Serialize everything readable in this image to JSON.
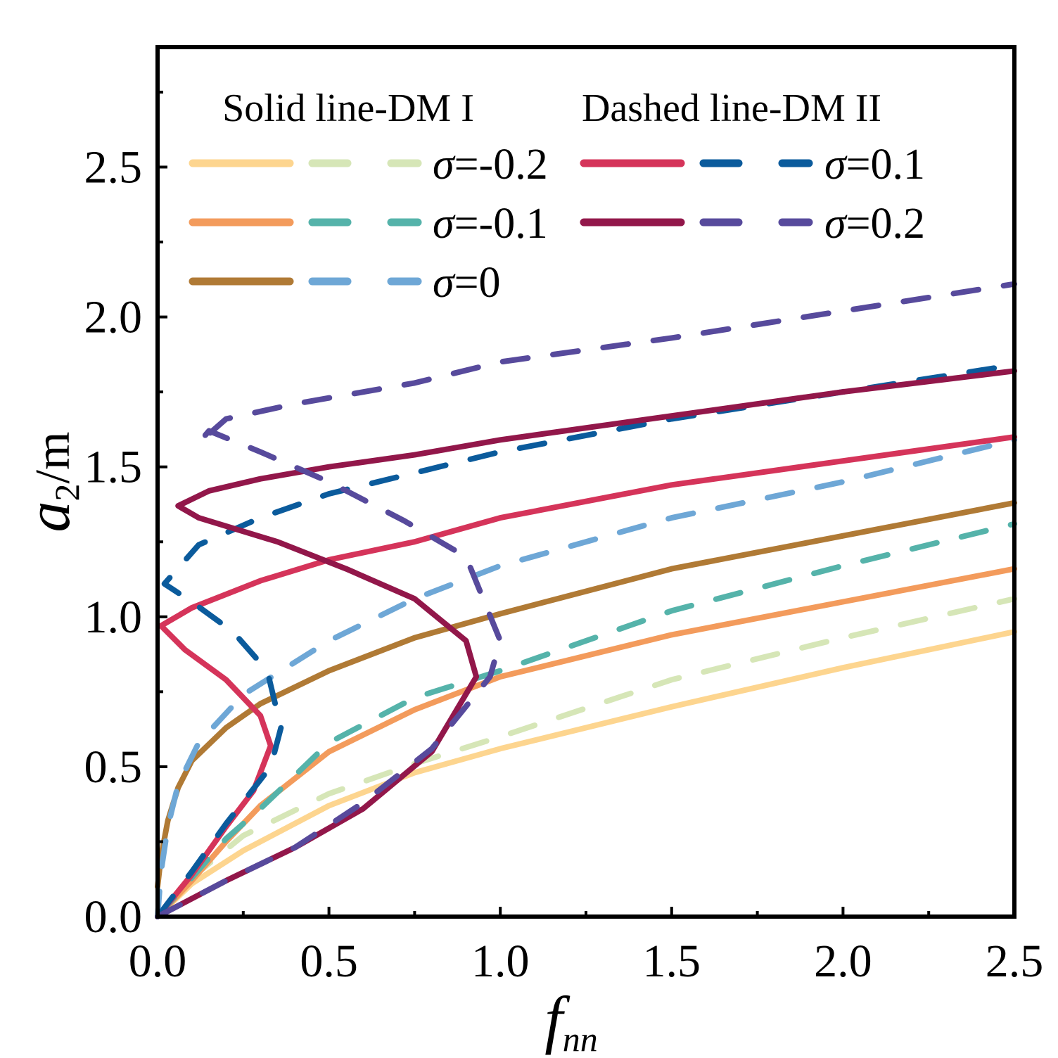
{
  "chart_data": {
    "type": "line",
    "title": "",
    "xlabel": "f",
    "xlabel_sub": "nn",
    "ylabel": "a",
    "ylabel_sub": "2",
    "ylabel_unit": "/m",
    "xlim": [
      0,
      2.5
    ],
    "ylim": [
      0,
      2.9
    ],
    "xticks": [
      "0.0",
      "0.5",
      "1.0",
      "1.5",
      "2.0",
      "2.5"
    ],
    "yticks": [
      "0.0",
      "0.5",
      "1.0",
      "1.5",
      "2.0",
      "2.5"
    ],
    "legend_header_solid": "Solid line-DM I",
    "legend_header_dashed": "Dashed line-DM II",
    "legend": [
      {
        "label": "σ=-0.2",
        "solid_color": "#fdd58f",
        "dashed_color": "#d6e6b7"
      },
      {
        "label": "σ=-0.1",
        "solid_color": "#f39b5c",
        "dashed_color": "#55b3aa"
      },
      {
        "label": "σ=0",
        "solid_color": "#b07a35",
        "dashed_color": "#6ea7d6"
      },
      {
        "label": "σ=0.1",
        "solid_color": "#d5345a",
        "dashed_color": "#0b5b9c"
      },
      {
        "label": "σ=0.2",
        "solid_color": "#92174a",
        "dashed_color": "#574a9c"
      }
    ],
    "series": [
      {
        "name": "σ=-0.2 DM I",
        "style": "solid",
        "color": "#fdd58f",
        "points": [
          [
            0,
            0
          ],
          [
            0.1,
            0.11
          ],
          [
            0.25,
            0.22
          ],
          [
            0.5,
            0.37
          ],
          [
            0.75,
            0.48
          ],
          [
            1.0,
            0.56
          ],
          [
            1.5,
            0.7
          ],
          [
            2.0,
            0.83
          ],
          [
            2.5,
            0.95
          ]
        ]
      },
      {
        "name": "σ=-0.2 DM II",
        "style": "dashed",
        "color": "#d6e6b7",
        "points": [
          [
            0,
            0
          ],
          [
            0.1,
            0.13
          ],
          [
            0.25,
            0.27
          ],
          [
            0.5,
            0.41
          ],
          [
            0.75,
            0.51
          ],
          [
            1.0,
            0.6
          ],
          [
            1.5,
            0.79
          ],
          [
            2.0,
            0.93
          ],
          [
            2.5,
            1.06
          ]
        ]
      },
      {
        "name": "σ=-0.1 DM I",
        "style": "solid",
        "color": "#f39b5c",
        "points": [
          [
            0,
            0
          ],
          [
            0.1,
            0.12
          ],
          [
            0.2,
            0.25
          ],
          [
            0.3,
            0.37
          ],
          [
            0.5,
            0.55
          ],
          [
            0.75,
            0.69
          ],
          [
            1.0,
            0.8
          ],
          [
            1.5,
            0.94
          ],
          [
            2.0,
            1.05
          ],
          [
            2.5,
            1.16
          ]
        ]
      },
      {
        "name": "σ=-0.1 DM II",
        "style": "dashed",
        "color": "#55b3aa",
        "points": [
          [
            0,
            0
          ],
          [
            0.1,
            0.13
          ],
          [
            0.2,
            0.26
          ],
          [
            0.3,
            0.36
          ],
          [
            0.5,
            0.58
          ],
          [
            0.75,
            0.73
          ],
          [
            1.0,
            0.82
          ],
          [
            1.5,
            1.02
          ],
          [
            2.0,
            1.17
          ],
          [
            2.5,
            1.31
          ]
        ]
      },
      {
        "name": "σ=0 DM I",
        "style": "solid",
        "color": "#b07a35",
        "points": [
          [
            0,
            0.1
          ],
          [
            0.01,
            0.2
          ],
          [
            0.03,
            0.32
          ],
          [
            0.06,
            0.43
          ],
          [
            0.1,
            0.52
          ],
          [
            0.2,
            0.63
          ],
          [
            0.3,
            0.71
          ],
          [
            0.5,
            0.82
          ],
          [
            0.75,
            0.93
          ],
          [
            1.0,
            1.01
          ],
          [
            1.5,
            1.16
          ],
          [
            2.0,
            1.27
          ],
          [
            2.5,
            1.38
          ]
        ]
      },
      {
        "name": "σ=0 DM II",
        "style": "dashed",
        "color": "#6ea7d6",
        "points": [
          [
            0,
            0
          ],
          [
            0.01,
            0.15
          ],
          [
            0.03,
            0.3
          ],
          [
            0.06,
            0.44
          ],
          [
            0.12,
            0.58
          ],
          [
            0.25,
            0.74
          ],
          [
            0.5,
            0.92
          ],
          [
            0.75,
            1.06
          ],
          [
            1.0,
            1.17
          ],
          [
            1.5,
            1.33
          ],
          [
            2.0,
            1.45
          ],
          [
            2.5,
            1.59
          ]
        ]
      },
      {
        "name": "σ=0.1 DM I",
        "style": "solid",
        "color": "#d5345a",
        "points": [
          [
            0,
            0
          ],
          [
            0.1,
            0.14
          ],
          [
            0.2,
            0.3
          ],
          [
            0.28,
            0.42
          ],
          [
            0.33,
            0.57
          ],
          [
            0.3,
            0.67
          ],
          [
            0.2,
            0.79
          ],
          [
            0.08,
            0.89
          ],
          [
            0.01,
            0.97
          ],
          [
            0.1,
            1.03
          ],
          [
            0.3,
            1.12
          ],
          [
            0.5,
            1.19
          ],
          [
            0.75,
            1.25
          ],
          [
            1.0,
            1.33
          ],
          [
            1.5,
            1.44
          ],
          [
            2.0,
            1.52
          ],
          [
            2.5,
            1.6
          ]
        ]
      },
      {
        "name": "σ=0.1 DM II",
        "style": "dashed",
        "color": "#0b5b9c",
        "points": [
          [
            0,
            0
          ],
          [
            0.1,
            0.15
          ],
          [
            0.2,
            0.31
          ],
          [
            0.33,
            0.5
          ],
          [
            0.36,
            0.63
          ],
          [
            0.32,
            0.82
          ],
          [
            0.22,
            0.95
          ],
          [
            0.1,
            1.05
          ],
          [
            0.02,
            1.11
          ],
          [
            0.12,
            1.24
          ],
          [
            0.3,
            1.33
          ],
          [
            0.5,
            1.41
          ],
          [
            0.75,
            1.48
          ],
          [
            1.0,
            1.55
          ],
          [
            1.5,
            1.66
          ],
          [
            2.0,
            1.75
          ],
          [
            2.5,
            1.84
          ]
        ]
      },
      {
        "name": "σ=0.2 DM I",
        "style": "solid",
        "color": "#92174a",
        "points": [
          [
            0,
            0
          ],
          [
            0.2,
            0.12
          ],
          [
            0.4,
            0.23
          ],
          [
            0.6,
            0.36
          ],
          [
            0.8,
            0.55
          ],
          [
            0.93,
            0.8
          ],
          [
            0.9,
            0.92
          ],
          [
            0.75,
            1.06
          ],
          [
            0.55,
            1.16
          ],
          [
            0.35,
            1.25
          ],
          [
            0.12,
            1.33
          ],
          [
            0.06,
            1.37
          ],
          [
            0.15,
            1.42
          ],
          [
            0.3,
            1.46
          ],
          [
            0.5,
            1.5
          ],
          [
            0.75,
            1.54
          ],
          [
            1.0,
            1.59
          ],
          [
            1.5,
            1.67
          ],
          [
            2.0,
            1.75
          ],
          [
            2.5,
            1.82
          ]
        ]
      },
      {
        "name": "σ=0.2 DM II",
        "style": "dashed",
        "color": "#574a9c",
        "points": [
          [
            0,
            0
          ],
          [
            0.2,
            0.12
          ],
          [
            0.4,
            0.23
          ],
          [
            0.6,
            0.38
          ],
          [
            0.8,
            0.56
          ],
          [
            0.97,
            0.8
          ],
          [
            1.0,
            0.92
          ],
          [
            0.9,
            1.2
          ],
          [
            0.72,
            1.32
          ],
          [
            0.5,
            1.45
          ],
          [
            0.3,
            1.55
          ],
          [
            0.15,
            1.62
          ],
          [
            0.12,
            1.58
          ],
          [
            0.2,
            1.66
          ],
          [
            0.4,
            1.71
          ],
          [
            0.75,
            1.78
          ],
          [
            1.0,
            1.85
          ],
          [
            1.5,
            1.93
          ],
          [
            2.0,
            2.02
          ],
          [
            2.5,
            2.11
          ]
        ]
      }
    ]
  }
}
